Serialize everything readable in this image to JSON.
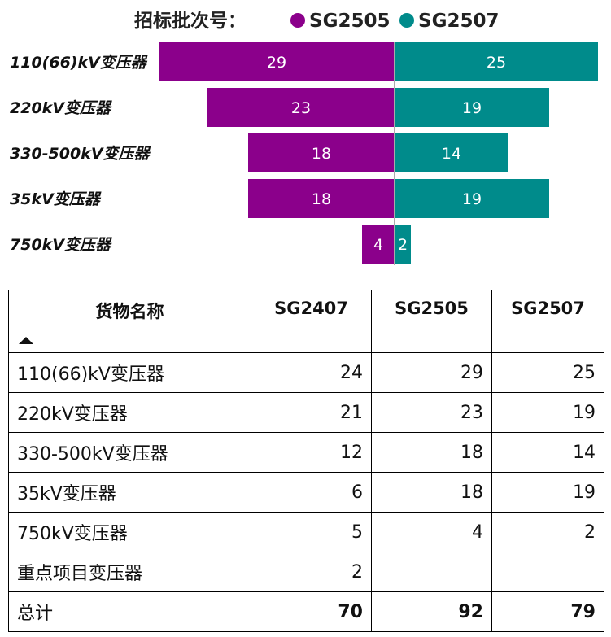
{
  "chart_data": {
    "type": "bar",
    "orientation": "diverging-horizontal",
    "legend_title": "招标批次号：",
    "categories": [
      "110(66)kV变压器",
      "220kV变压器",
      "330-500kV变压器",
      "35kV变压器",
      "750kV变压器"
    ],
    "series": [
      {
        "name": "SG2505",
        "color": "#8B008B",
        "side": "left",
        "values": [
          29,
          23,
          18,
          18,
          4
        ]
      },
      {
        "name": "SG2507",
        "color": "#008B8B",
        "side": "right",
        "values": [
          25,
          19,
          14,
          19,
          2
        ]
      }
    ]
  },
  "table": {
    "headers": [
      "货物名称",
      "SG2407",
      "SG2505",
      "SG2507"
    ],
    "rows": [
      {
        "name": "110(66)kV变压器",
        "v1": "24",
        "v2": "29",
        "v3": "25"
      },
      {
        "name": "220kV变压器",
        "v1": "21",
        "v2": "23",
        "v3": "19"
      },
      {
        "name": "330-500kV变压器",
        "v1": "12",
        "v2": "18",
        "v3": "14"
      },
      {
        "name": "35kV变压器",
        "v1": "6",
        "v2": "18",
        "v3": "19"
      },
      {
        "name": "750kV变压器",
        "v1": "5",
        "v2": "4",
        "v3": "2"
      },
      {
        "name": "重点项目变压器",
        "v1": "2",
        "v2": "",
        "v3": ""
      },
      {
        "name": "总计",
        "v1": "70",
        "v2": "92",
        "v3": "79"
      }
    ]
  }
}
